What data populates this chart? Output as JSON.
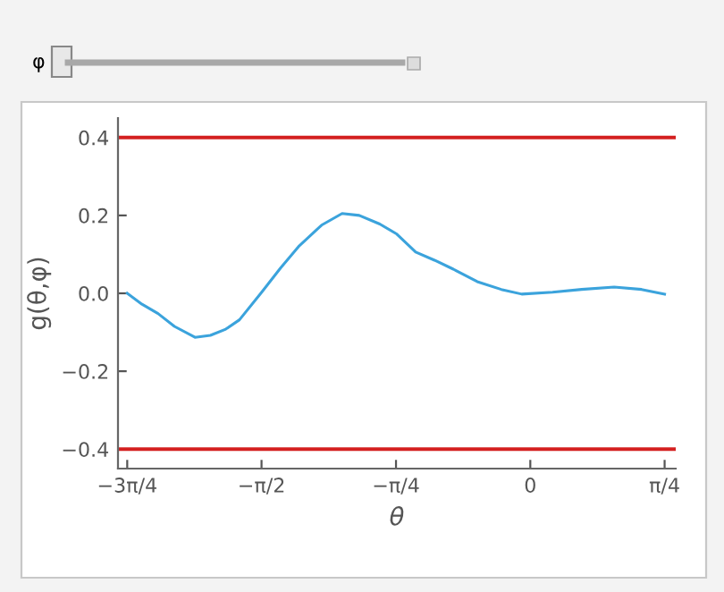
{
  "chart_data": {
    "type": "line",
    "xlabel": "θ",
    "ylabel": "g(θ,φ)",
    "annotations": [
      "φ"
    ],
    "x": [
      -2.356,
      -2.27,
      -2.176,
      -2.08,
      -1.96,
      -1.87,
      -1.78,
      -1.7,
      -1.57,
      -1.46,
      -1.35,
      -1.22,
      -1.1,
      -1.0,
      -0.88,
      -0.78,
      -0.67,
      -0.56,
      -0.45,
      -0.31,
      -0.17,
      -0.05,
      0.13,
      0.3,
      0.49,
      0.65,
      0.785
    ],
    "series": [
      {
        "color": "#3ba3dc",
        "values": [
          0.0,
          -0.028,
          -0.052,
          -0.085,
          -0.113,
          -0.108,
          -0.092,
          -0.068,
          0.003,
          0.065,
          0.122,
          0.175,
          0.205,
          0.2,
          0.178,
          0.152,
          0.106,
          0.085,
          0.062,
          0.03,
          0.01,
          -0.002,
          0.003,
          0.01,
          0.016,
          0.01,
          -0.002
        ]
      }
    ],
    "ref_lines": [
      {
        "axis": "y",
        "value": 0.4,
        "color": "#d42020"
      },
      {
        "axis": "y",
        "value": -0.4,
        "color": "#d42020"
      }
    ],
    "xlim": [
      -2.41,
      0.85
    ],
    "ylim": [
      -0.45,
      0.45
    ],
    "xticks": [
      {
        "value": -2.356,
        "label": "−3π/4"
      },
      {
        "value": -1.571,
        "label": "−π/2"
      },
      {
        "value": -0.785,
        "label": "−π/4"
      },
      {
        "value": 0,
        "label": "0"
      },
      {
        "value": 0.785,
        "label": "π/4"
      }
    ],
    "yticks": [
      {
        "value": 0.4,
        "label": "0.4"
      },
      {
        "value": 0.2,
        "label": "0.2"
      },
      {
        "value": 0.0,
        "label": "0.0"
      },
      {
        "value": -0.2,
        "label": "−0.2"
      },
      {
        "value": -0.4,
        "label": "−0.4"
      }
    ],
    "marker": "none",
    "line_style": "solid"
  }
}
